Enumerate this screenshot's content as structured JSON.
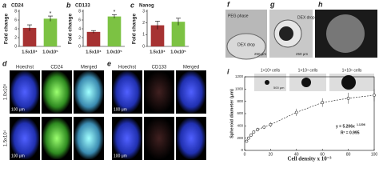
{
  "chart_data": [
    {
      "type": "bar",
      "panel": "a",
      "title": "CD24",
      "y_label": "Fold change",
      "categories": [
        "1.5x10⁴",
        "1.0x10⁵"
      ],
      "values": [
        4.2,
        6.3
      ],
      "errors": [
        0.7,
        0.6
      ],
      "colors": [
        "#a63232",
        "#7cc243"
      ],
      "ylim": [
        0,
        8
      ],
      "yticks": [
        0,
        2,
        4,
        6,
        8
      ],
      "annotation": "*"
    },
    {
      "type": "bar",
      "panel": "b",
      "title": "CD133",
      "y_label": "Fold change",
      "categories": [
        "1.5x10⁴",
        "1.0x10⁵"
      ],
      "values": [
        3.3,
        6.8
      ],
      "errors": [
        0.3,
        0.4
      ],
      "colors": [
        "#a63232",
        "#7cc243"
      ],
      "ylim": [
        0,
        8
      ],
      "yticks": [
        0,
        2,
        4,
        6,
        8
      ],
      "annotation": "*"
    },
    {
      "type": "bar",
      "panel": "c",
      "title": "Nanog",
      "y_label": "Fold change",
      "categories": [
        "1.5x10⁴",
        "1.0x10⁵"
      ],
      "values": [
        1.8,
        2.1
      ],
      "errors": [
        0.35,
        0.3
      ],
      "colors": [
        "#a63232",
        "#7cc243"
      ],
      "ylim": [
        0,
        3
      ],
      "yticks": [
        0,
        1,
        2,
        3
      ]
    },
    {
      "type": "scatter",
      "panel": "i",
      "x_label": "Cell density x 10⁻³",
      "y_label": "Spheroid diameter (μm)",
      "x": [
        1.5,
        3,
        5,
        7,
        10,
        15,
        20,
        40,
        60,
        80,
        100
      ],
      "values": [
        150,
        200,
        250,
        300,
        340,
        380,
        420,
        620,
        780,
        850,
        900
      ],
      "errors": [
        20,
        20,
        25,
        25,
        30,
        30,
        40,
        60,
        70,
        90,
        100
      ],
      "color": "#333333",
      "xlim": [
        0,
        100
      ],
      "ylim": [
        0,
        1200
      ],
      "xticks": [
        0,
        20,
        40,
        60,
        80,
        100
      ],
      "yticks": [
        0,
        200,
        400,
        600,
        800,
        1000,
        1200
      ],
      "equation": "y = 5.206x",
      "exponent": "1.1206",
      "r2": "R² = 0.995"
    }
  ],
  "images": {
    "d": {
      "panel": "d",
      "columns": [
        "Hoechst",
        "CD24",
        "Merged"
      ],
      "rows": [
        "1.0x10⁵",
        "1.5x10⁴"
      ],
      "scale": "100 μm"
    },
    "e": {
      "panel": "e",
      "columns": [
        "Hoechst",
        "CD133",
        "Merged"
      ],
      "scale": "100 μm"
    },
    "f": {
      "panel": "f",
      "phase": "PEG phase",
      "drop": "DEX drop",
      "scale": "250 μm"
    },
    "g": {
      "panel": "g",
      "drop": "DEX drop",
      "scale": "250 μm"
    },
    "h": {
      "panel": "h"
    },
    "i_insets": [
      "1×10³ cells",
      "1×10⁴ cells",
      "1×10⁵ cells"
    ],
    "i_scale": "500 μm"
  }
}
